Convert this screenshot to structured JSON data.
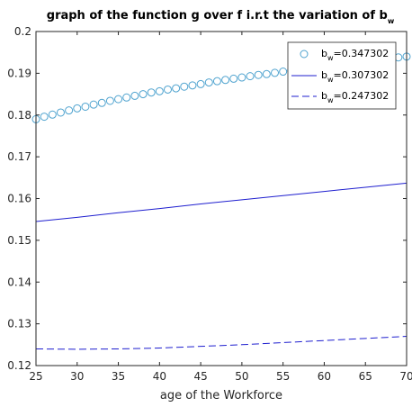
{
  "chart_data": {
    "type": "line",
    "title": "graph of the function g over f i.r.t the variation of b",
    "title_subscript": "w",
    "xlabel": "age of the Workforce",
    "ylabel": "",
    "xlim": [
      25,
      70
    ],
    "ylim": [
      0.12,
      0.2
    ],
    "x_ticks": [
      25,
      30,
      35,
      40,
      45,
      50,
      55,
      60,
      65,
      70
    ],
    "y_ticks": [
      0.12,
      0.13,
      0.14,
      0.15,
      0.16,
      0.17,
      0.18,
      0.19,
      0.2
    ],
    "x_tick_labels": [
      "25",
      "30",
      "35",
      "40",
      "45",
      "50",
      "55",
      "60",
      "65",
      "70"
    ],
    "y_tick_labels": [
      "0.12",
      "0.13",
      "0.14",
      "0.15",
      "0.16",
      "0.17",
      "0.18",
      "0.19",
      "0.2"
    ],
    "grid": false,
    "legend_position": "top-right",
    "series": [
      {
        "name": "b",
        "name_subscript": "w",
        "name_value": "=0.347302",
        "style": "circles",
        "color": "#4fa3cf",
        "x": [
          25,
          26,
          27,
          28,
          29,
          30,
          31,
          32,
          33,
          34,
          35,
          36,
          37,
          38,
          39,
          40,
          41,
          42,
          43,
          44,
          45,
          46,
          47,
          48,
          49,
          50,
          51,
          52,
          53,
          54,
          55,
          56,
          57,
          58,
          59,
          60,
          61,
          62,
          63,
          64,
          65,
          66,
          67,
          68,
          69,
          70
        ],
        "y": [
          0.179,
          0.1796,
          0.1801,
          0.1806,
          0.1811,
          0.1816,
          0.182,
          0.1825,
          0.1829,
          0.1834,
          0.1838,
          0.1842,
          0.1846,
          0.185,
          0.1854,
          0.1857,
          0.1861,
          0.1864,
          0.1868,
          0.1871,
          0.1874,
          0.1878,
          0.1881,
          0.1884,
          0.1887,
          0.189,
          0.1893,
          0.1896,
          0.1898,
          0.1901,
          0.1904,
          0.1907,
          0.1909,
          0.1912,
          0.1914,
          0.1917,
          0.1919,
          0.1922,
          0.1924,
          0.1926,
          0.1929,
          0.1931,
          0.1933,
          0.1935,
          0.1938,
          0.194
        ]
      },
      {
        "name": "b",
        "name_subscript": "w",
        "name_value": "=0.307302",
        "style": "solid",
        "color": "#1f1fcf",
        "x": [
          25,
          30,
          35,
          40,
          45,
          50,
          55,
          60,
          65,
          70
        ],
        "y": [
          0.1545,
          0.1555,
          0.1566,
          0.1576,
          0.1587,
          0.1597,
          0.1607,
          0.1617,
          0.1627,
          0.1637
        ]
      },
      {
        "name": "b",
        "name_subscript": "w",
        "name_value": "=0.247302",
        "style": "dashed",
        "color": "#1f1fcf",
        "x": [
          25,
          30,
          35,
          40,
          45,
          50,
          55,
          60,
          65,
          70
        ],
        "y": [
          0.124,
          0.1239,
          0.124,
          0.1242,
          0.1246,
          0.125,
          0.1255,
          0.126,
          0.1265,
          0.127
        ]
      }
    ]
  }
}
